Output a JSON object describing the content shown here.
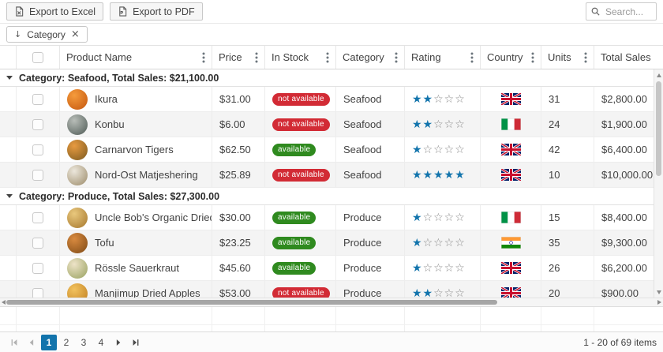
{
  "toolbar": {
    "export_excel_label": "Export to Excel",
    "export_pdf_label": "Export to PDF",
    "search_placeholder": "Search..."
  },
  "group_panel": {
    "chip_label": "Category"
  },
  "icons": {
    "group_sort_arrow": "↓",
    "chip_remove": "×"
  },
  "grid": {
    "columns": [
      "Product Name",
      "Price",
      "In Stock",
      "Category",
      "Rating",
      "Country",
      "Units",
      "Total Sales"
    ],
    "groups": [
      {
        "header": "Category: Seafood, Total Sales: $21,100.00",
        "rows": [
          {
            "name": "Ikura",
            "price": "$31.00",
            "stock": "not available",
            "available": false,
            "category": "Seafood",
            "rating": 2,
            "country": "uk",
            "units": "31",
            "total": "$2,800.00",
            "img": [
              "#f59b3c",
              "#c4560e"
            ]
          },
          {
            "name": "Konbu",
            "price": "$6.00",
            "stock": "not available",
            "available": false,
            "category": "Seafood",
            "rating": 2,
            "country": "italy",
            "units": "24",
            "total": "$1,900.00",
            "img": [
              "#b8bdb8",
              "#4e5a55"
            ]
          },
          {
            "name": "Carnarvon Tigers",
            "price": "$62.50",
            "stock": "available",
            "available": true,
            "category": "Seafood",
            "rating": 1,
            "country": "uk",
            "units": "42",
            "total": "$6,400.00",
            "img": [
              "#e89a40",
              "#7a5a20"
            ]
          },
          {
            "name": "Nord-Ost Matjeshering",
            "price": "$25.89",
            "stock": "not available",
            "available": false,
            "category": "Seafood",
            "rating": 5,
            "country": "uk",
            "units": "10",
            "total": "$10,000.00",
            "img": [
              "#ece7dc",
              "#9b8a68"
            ]
          }
        ]
      },
      {
        "header": "Category: Produce, Total Sales: $27,300.00",
        "rows": [
          {
            "name": "Uncle Bob's Organic Dried Pears",
            "price": "$30.00",
            "stock": "available",
            "available": true,
            "category": "Produce",
            "rating": 1,
            "country": "italy",
            "units": "15",
            "total": "$8,400.00",
            "img": [
              "#e9c87d",
              "#a5762c"
            ]
          },
          {
            "name": "Tofu",
            "price": "$23.25",
            "stock": "available",
            "available": true,
            "category": "Produce",
            "rating": 1,
            "country": "india",
            "units": "35",
            "total": "$9,300.00",
            "img": [
              "#d98a3f",
              "#7e4a16"
            ]
          },
          {
            "name": "Rössle Sauerkraut",
            "price": "$45.60",
            "stock": "available",
            "available": true,
            "category": "Produce",
            "rating": 1,
            "country": "uk",
            "units": "26",
            "total": "$6,200.00",
            "img": [
              "#eee3c8",
              "#97a15e"
            ]
          },
          {
            "name": "Manjimup Dried Apples",
            "price": "$53.00",
            "stock": "not available",
            "available": false,
            "category": "Produce",
            "rating": 2,
            "country": "uk",
            "units": "20",
            "total": "$900.00",
            "img": [
              "#f2c25e",
              "#bf7d1f"
            ]
          }
        ]
      }
    ]
  },
  "pager": {
    "pages": [
      "1",
      "2",
      "3",
      "4"
    ],
    "current": "1",
    "info": "1 - 20 of 69 items"
  },
  "colors": {
    "accent": "#1274ac",
    "star": "#1274ac",
    "green": "#2f8a1f",
    "red": "#d22b35"
  }
}
